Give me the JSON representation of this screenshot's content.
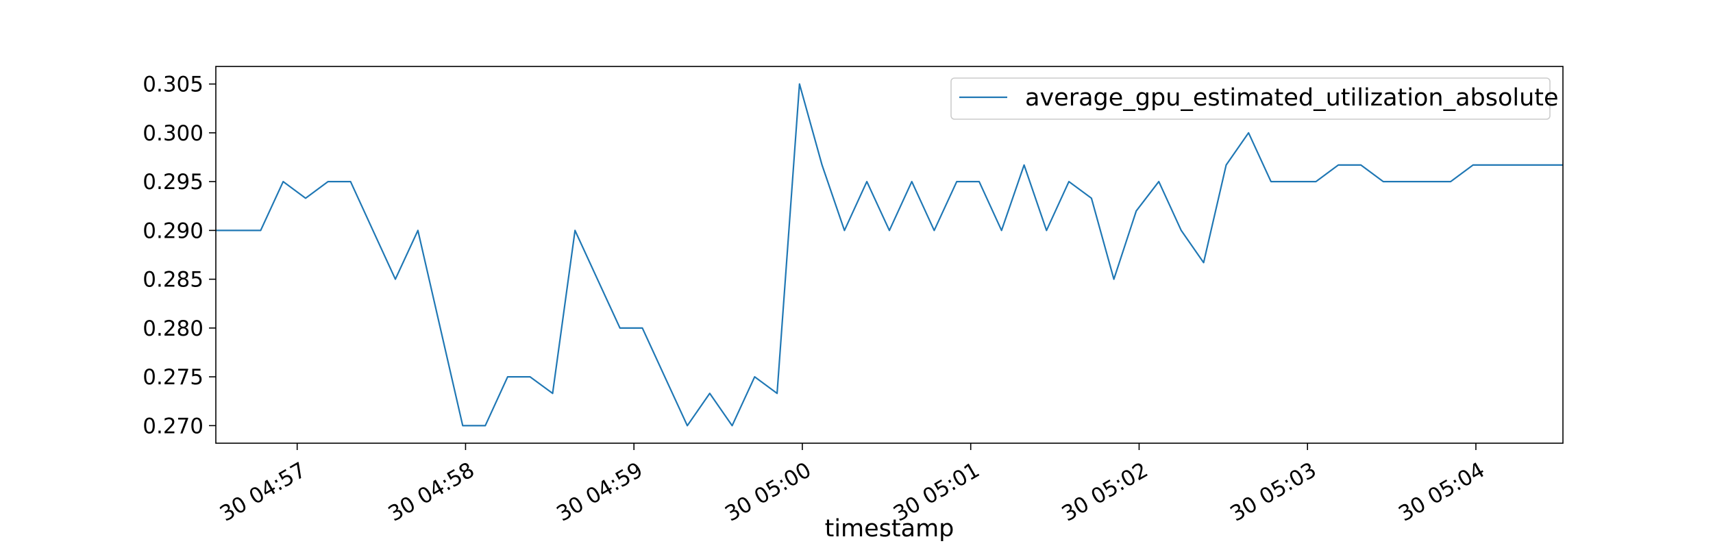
{
  "chart_data": {
    "type": "line",
    "title": "",
    "xlabel": "timestamp",
    "ylabel": "",
    "legend": {
      "placement": "top-right"
    },
    "grid": false,
    "x_tick_labels": [
      "30 04:57",
      "30 04:58",
      "30 04:59",
      "30 05:00",
      "30 05:01",
      "30 05:02",
      "30 05:03",
      "30 05:04"
    ],
    "x_tick_minutes": [
      57,
      58,
      59,
      60,
      61,
      62,
      63,
      64
    ],
    "xlim": [
      56.517,
      64.517
    ],
    "y_tick_labels": [
      "0.270",
      "0.275",
      "0.280",
      "0.285",
      "0.290",
      "0.295",
      "0.300",
      "0.305"
    ],
    "y_tick_values": [
      0.27,
      0.275,
      0.28,
      0.285,
      0.29,
      0.295,
      0.3,
      0.305
    ],
    "ylim": [
      0.2682,
      0.3068
    ],
    "series": [
      {
        "name": "average_gpu_estimated_utilization_absolute",
        "color": "#1f77b4",
        "x": [
          56.517,
          56.65,
          56.783,
          56.917,
          57.05,
          57.183,
          57.317,
          57.45,
          57.583,
          57.717,
          57.85,
          57.983,
          58.117,
          58.25,
          58.383,
          58.517,
          58.65,
          58.783,
          58.917,
          59.05,
          59.183,
          59.317,
          59.45,
          59.583,
          59.717,
          59.85,
          59.983,
          60.117,
          60.25,
          60.383,
          60.517,
          60.65,
          60.783,
          60.917,
          61.05,
          61.183,
          61.317,
          61.45,
          61.583,
          61.717,
          61.85,
          61.983,
          62.117,
          62.25,
          62.383,
          62.517,
          62.65,
          62.783,
          62.917,
          63.05,
          63.183,
          63.317,
          63.45,
          63.583,
          63.717,
          63.85,
          63.983,
          64.117,
          64.25,
          64.383,
          64.517
        ],
        "values": [
          0.29,
          0.29,
          0.29,
          0.295,
          0.2933,
          0.295,
          0.295,
          0.29,
          0.285,
          0.29,
          0.28,
          0.27,
          0.27,
          0.275,
          0.275,
          0.2733,
          0.29,
          0.285,
          0.28,
          0.28,
          0.275,
          0.27,
          0.2733,
          0.27,
          0.275,
          0.2733,
          0.305,
          0.2967,
          0.29,
          0.295,
          0.29,
          0.295,
          0.29,
          0.295,
          0.295,
          0.29,
          0.2967,
          0.29,
          0.295,
          0.2933,
          0.285,
          0.292,
          0.295,
          0.29,
          0.2867,
          0.2967,
          0.3,
          0.295,
          0.295,
          0.295,
          0.2967,
          0.2967,
          0.295,
          0.295,
          0.295,
          0.295,
          0.2967,
          0.2967,
          0.2967,
          0.2967,
          0.2967
        ]
      }
    ]
  }
}
